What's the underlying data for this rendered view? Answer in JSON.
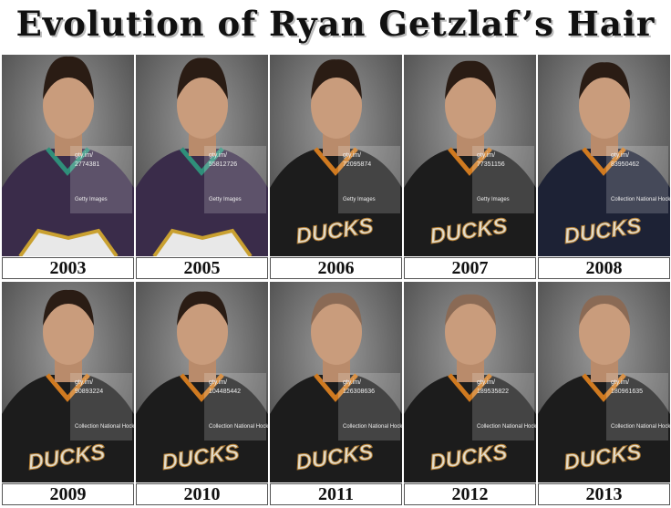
{
  "header": {
    "title": "Evolution of Ryan Getzlaf’s Hair"
  },
  "photos": [
    {
      "year": "2003",
      "watermark": {
        "site": "gty.im/",
        "id": "2774381",
        "credit": "Getty Images"
      }
    },
    {
      "year": "2005",
      "watermark": {
        "site": "gty.im/",
        "id": "55812726",
        "credit": "Getty Images"
      }
    },
    {
      "year": "2006",
      "watermark": {
        "site": "gty.im/",
        "id": "72095874",
        "credit": "Getty Images"
      },
      "logo": "DUCKS"
    },
    {
      "year": "2007",
      "watermark": {
        "site": "gty.im/",
        "id": "77351156",
        "credit": "Getty Images"
      },
      "logo": "DUCKS"
    },
    {
      "year": "2008",
      "watermark": {
        "site": "gty.im/",
        "id": "83950462",
        "credit": "Collection National Hockey League"
      },
      "logo": "DUCKS"
    },
    {
      "year": "2009",
      "watermark": {
        "site": "gty.im/",
        "id": "90893224",
        "credit": "Collection National Hockey League"
      },
      "logo": "DUCKS"
    },
    {
      "year": "2010",
      "watermark": {
        "site": "gty.im/",
        "id": "104485442",
        "credit": "Collection National Hockey League"
      },
      "logo": "DUCKS"
    },
    {
      "year": "2011",
      "watermark": {
        "site": "gty.im/",
        "id": "126308636",
        "credit": "Collection National Hockey League"
      },
      "logo": "DUCKS"
    },
    {
      "year": "2012",
      "watermark": {
        "site": "gty.im/",
        "id": "189535822",
        "credit": "Collection National Hockey League"
      },
      "logo": "DUCKS"
    },
    {
      "year": "2013",
      "watermark": {
        "site": "gty.im/",
        "id": "180961635",
        "credit": "Collection National Hockey League"
      },
      "logo": "DUCKS"
    }
  ]
}
